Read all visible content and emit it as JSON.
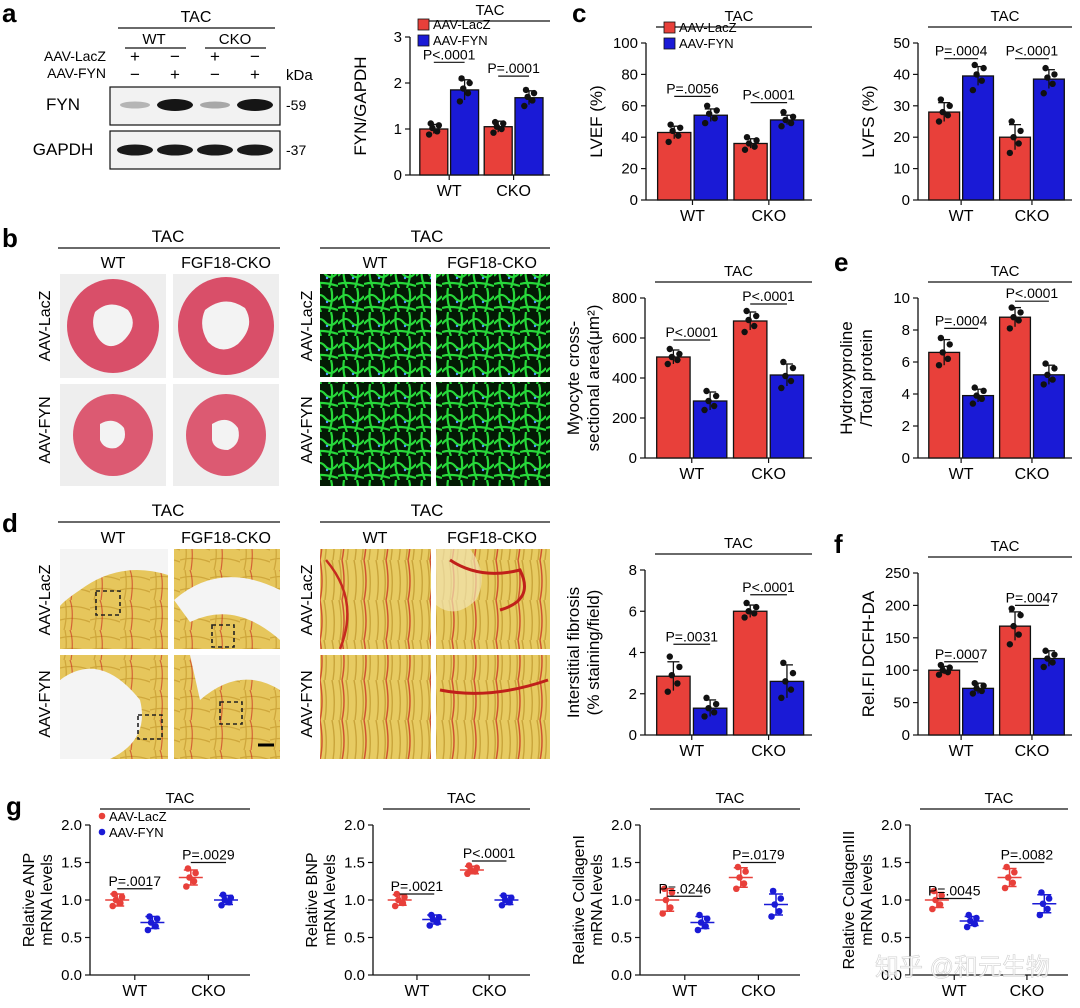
{
  "watermark": "知乎 @和元生物",
  "colors": {
    "lacz": "#e8403a",
    "fyn": "#1a1ad6",
    "stain_pink": "#d9566e",
    "wga": "#1ccf2c",
    "sirius_bg": "#e3c55a",
    "sirius_red": "#c8201c"
  },
  "legend": {
    "lacz": "AAV-LacZ",
    "fyn": "AAV-FYN"
  },
  "panel_a": {
    "letter": "a",
    "tac": "TAC",
    "genotypes": [
      "WT",
      "CKO"
    ],
    "row_labels": [
      "AAV-LacZ",
      "AAV-FYN"
    ],
    "signs_lacz": [
      "+",
      "−",
      "+",
      "−"
    ],
    "signs_fyn": [
      "−",
      "+",
      "−",
      "+"
    ],
    "kda": "kDa",
    "blots": [
      {
        "name": "FYN",
        "kda": "-59"
      },
      {
        "name": "GAPDH",
        "kda": "-37"
      }
    ]
  },
  "panel_b": {
    "letter": "b",
    "tac": "TAC",
    "col_labels": [
      "WT",
      "FGF18-CKO"
    ],
    "col_labels2": [
      "WT",
      "FGF18-CKO"
    ],
    "row_labels": [
      "AAV-LacZ",
      "AAV-FYN"
    ]
  },
  "panel_d": {
    "letter": "d",
    "tac": "TAC",
    "col_labels": [
      "WT",
      "FGF18-CKO"
    ],
    "col_labels2": [
      "WT",
      "FGF18-CKO"
    ],
    "row_labels": [
      "AAV-LacZ",
      "AAV-FYN"
    ]
  },
  "letters": {
    "c": "c",
    "e": "e",
    "f": "f",
    "g": "g"
  },
  "chart_data": [
    {
      "id": "fyn_gapdh",
      "type": "bar",
      "tac": "TAC",
      "ylabel": "FYN/GAPDH",
      "ylim": [
        0,
        3
      ],
      "yticks": [
        0,
        1,
        2,
        3
      ],
      "categories": [
        "WT",
        "CKO"
      ],
      "legend": true,
      "series": [
        {
          "name": "AAV-LacZ",
          "values": [
            1.0,
            1.05
          ],
          "err": [
            0.1,
            0.12
          ],
          "points": [
            [
              0.88,
              0.95,
              1.02,
              1.08,
              1.12
            ],
            [
              0.92,
              1.0,
              1.05,
              1.12,
              1.15
            ]
          ]
        },
        {
          "name": "AAV-FYN",
          "values": [
            1.85,
            1.68
          ],
          "err": [
            0.22,
            0.15
          ],
          "points": [
            [
              1.6,
              1.78,
              1.88,
              2.0,
              2.1
            ],
            [
              1.5,
              1.62,
              1.7,
              1.78,
              1.85
            ]
          ]
        }
      ],
      "pvalues": [
        {
          "cat": 0,
          "text": "P<.0001",
          "level": 2.45
        },
        {
          "cat": 1,
          "text": "P=.0001",
          "level": 2.15
        }
      ]
    },
    {
      "id": "lvef",
      "type": "bar",
      "tac": "TAC",
      "ylabel": "LVEF (%)",
      "ylim": [
        0,
        100
      ],
      "yticks": [
        0,
        20,
        40,
        60,
        80,
        100
      ],
      "categories": [
        "WT",
        "CKO"
      ],
      "legend": true,
      "series": [
        {
          "name": "AAV-LacZ",
          "values": [
            43,
            36
          ],
          "err": [
            4,
            3
          ],
          "points": [
            [
              37,
              41,
              44,
              46,
              48
            ],
            [
              32,
              34,
              36,
              38,
              40
            ]
          ]
        },
        {
          "name": "AAV-FYN",
          "values": [
            54,
            51
          ],
          "err": [
            4,
            3
          ],
          "points": [
            [
              49,
              52,
              55,
              57,
              60
            ],
            [
              47,
              49,
              51,
              53,
              56
            ]
          ]
        }
      ],
      "pvalues": [
        {
          "cat": 0,
          "text": "P=.0056",
          "level": 66
        },
        {
          "cat": 1,
          "text": "P<.0001",
          "level": 62
        }
      ]
    },
    {
      "id": "lvfs",
      "type": "bar",
      "tac": "TAC",
      "ylabel": "LVFS (%)",
      "ylim": [
        0,
        50
      ],
      "yticks": [
        0,
        10,
        20,
        30,
        40,
        50
      ],
      "categories": [
        "WT",
        "CKO"
      ],
      "legend": false,
      "series": [
        {
          "name": "AAV-LacZ",
          "values": [
            28,
            20
          ],
          "err": [
            3,
            4
          ],
          "points": [
            [
              25,
              27,
              28,
              30,
              32
            ],
            [
              15,
              18,
              20,
              22,
              25
            ]
          ]
        },
        {
          "name": "AAV-FYN",
          "values": [
            39.5,
            38.5
          ],
          "err": [
            3,
            3
          ],
          "points": [
            [
              35,
              38,
              40,
              42,
              43
            ],
            [
              34,
              37,
              39,
              40,
              42
            ]
          ]
        }
      ],
      "pvalues": [
        {
          "cat": 0,
          "text": "P=.0004",
          "level": 45
        },
        {
          "cat": 1,
          "text": "P<.0001",
          "level": 45
        }
      ]
    },
    {
      "id": "csa",
      "type": "bar",
      "tac": "TAC",
      "ylabel": "Myocyte cross-|sectional area(μm²)",
      "ylim": [
        0,
        800
      ],
      "yticks": [
        0,
        200,
        400,
        600,
        800
      ],
      "categories": [
        "WT",
        "CKO"
      ],
      "legend": false,
      "series": [
        {
          "name": "AAV-LacZ",
          "values": [
            505,
            685
          ],
          "err": [
            35,
            45
          ],
          "points": [
            [
              470,
              490,
              505,
              520,
              545
            ],
            [
              630,
              660,
              690,
              710,
              735
            ]
          ]
        },
        {
          "name": "AAV-FYN",
          "values": [
            285,
            415
          ],
          "err": [
            45,
            55
          ],
          "points": [
            [
              240,
              260,
              285,
              310,
              335
            ],
            [
              350,
              385,
              410,
              450,
              480
            ]
          ]
        }
      ],
      "pvalues": [
        {
          "cat": 0,
          "text": "P<.0001",
          "level": 590
        },
        {
          "cat": 1,
          "text": "P<.0001",
          "level": 770
        }
      ]
    },
    {
      "id": "hydroxyproline",
      "type": "bar",
      "tac": "TAC",
      "ylabel": "Hydroxyproline|/Total protein",
      "ylim": [
        0,
        10
      ],
      "yticks": [
        0,
        2,
        4,
        6,
        8,
        10
      ],
      "categories": [
        "WT",
        "CKO"
      ],
      "legend": false,
      "series": [
        {
          "name": "AAV-LacZ",
          "values": [
            6.6,
            8.8
          ],
          "err": [
            0.8,
            0.6
          ],
          "points": [
            [
              5.8,
              6.2,
              6.6,
              7.1,
              7.5
            ],
            [
              8.1,
              8.6,
              8.8,
              9.1,
              9.4
            ]
          ]
        },
        {
          "name": "AAV-FYN",
          "values": [
            3.9,
            5.2
          ],
          "err": [
            0.4,
            0.6
          ],
          "points": [
            [
              3.4,
              3.7,
              3.9,
              4.2,
              4.4
            ],
            [
              4.6,
              4.9,
              5.2,
              5.6,
              5.9
            ]
          ]
        }
      ],
      "pvalues": [
        {
          "cat": 0,
          "text": "P=.0004",
          "level": 8.1
        },
        {
          "cat": 1,
          "text": "P<.0001",
          "level": 9.8
        }
      ]
    },
    {
      "id": "fibrosis",
      "type": "bar",
      "tac": "TAC",
      "ylabel": "Interstitial fibrosis|(% staining/field)",
      "ylim": [
        0,
        8
      ],
      "yticks": [
        0,
        2,
        4,
        6,
        8
      ],
      "categories": [
        "WT",
        "CKO"
      ],
      "legend": false,
      "series": [
        {
          "name": "AAV-LacZ",
          "values": [
            2.85,
            6.0
          ],
          "err": [
            0.7,
            0.3
          ],
          "points": [
            [
              2.1,
              2.5,
              2.9,
              3.3,
              3.8
            ],
            [
              5.7,
              5.9,
              6.0,
              6.2,
              6.4
            ]
          ]
        },
        {
          "name": "AAV-FYN",
          "values": [
            1.3,
            2.6
          ],
          "err": [
            0.4,
            0.8
          ],
          "points": [
            [
              0.9,
              1.1,
              1.3,
              1.5,
              1.8
            ],
            [
              1.8,
              2.2,
              2.6,
              3.0,
              3.5
            ]
          ]
        }
      ],
      "pvalues": [
        {
          "cat": 0,
          "text": "P=.0031",
          "level": 4.4
        },
        {
          "cat": 1,
          "text": "P<.0001",
          "level": 6.8
        }
      ]
    },
    {
      "id": "dcfh",
      "type": "bar",
      "tac": "TAC",
      "ylabel": "Rel.FI DCFH-DA",
      "ylim": [
        0,
        250
      ],
      "yticks": [
        0,
        50,
        100,
        150,
        200,
        250
      ],
      "categories": [
        "WT",
        "CKO"
      ],
      "legend": false,
      "series": [
        {
          "name": "AAV-LacZ",
          "values": [
            100,
            168
          ],
          "err": [
            6,
            22
          ],
          "points": [
            [
              93,
              97,
              100,
              104,
              108
            ],
            [
              140,
              155,
              168,
              185,
              195
            ]
          ]
        },
        {
          "name": "AAV-FYN",
          "values": [
            72,
            118
          ],
          "err": [
            8,
            12
          ],
          "points": [
            [
              64,
              68,
              72,
              76,
              80
            ],
            [
              105,
              112,
              118,
              124,
              130
            ]
          ]
        }
      ],
      "pvalues": [
        {
          "cat": 0,
          "text": "P=.0007",
          "level": 113
        },
        {
          "cat": 1,
          "text": "P=.0047",
          "level": 200
        }
      ]
    },
    {
      "id": "anp",
      "type": "scatter",
      "tac": "TAC",
      "ylabel_top": "Relative ANP",
      "ylabel_bottom": "mRNA levels",
      "ylim": [
        0,
        2.0
      ],
      "yticks": [
        "0.0",
        "0.5",
        "1.0",
        "1.5",
        "2.0"
      ],
      "categories": [
        "WT",
        "CKO"
      ],
      "legend": true,
      "series": [
        {
          "name": "AAV-LacZ",
          "values": [
            1.0,
            1.3
          ],
          "err": [
            0.08,
            0.1
          ],
          "points": [
            [
              0.92,
              0.96,
              1.0,
              1.04,
              1.08
            ],
            [
              1.18,
              1.25,
              1.3,
              1.36,
              1.42
            ]
          ]
        },
        {
          "name": "AAV-FYN",
          "values": [
            0.7,
            1.0
          ],
          "err": [
            0.08,
            0.06
          ],
          "points": [
            [
              0.6,
              0.65,
              0.7,
              0.75,
              0.78
            ],
            [
              0.93,
              0.97,
              1.0,
              1.03,
              1.07
            ]
          ]
        }
      ],
      "pvalues": [
        {
          "cat": 0,
          "text": "P=.0017",
          "level": 1.15
        },
        {
          "cat": 1,
          "text": "P=.0029",
          "level": 1.5
        }
      ]
    },
    {
      "id": "bnp",
      "type": "scatter",
      "tac": "TAC",
      "ylabel_top": "Relative BNP",
      "ylabel_bottom": "mRNA levels",
      "ylim": [
        0,
        2.0
      ],
      "yticks": [
        "0.0",
        "0.5",
        "1.0",
        "1.5",
        "2.0"
      ],
      "categories": [
        "WT",
        "CKO"
      ],
      "legend": false,
      "series": [
        {
          "name": "AAV-LacZ",
          "values": [
            1.0,
            1.4
          ],
          "err": [
            0.07,
            0.05
          ],
          "points": [
            [
              0.92,
              0.96,
              1.0,
              1.04,
              1.08
            ],
            [
              1.35,
              1.38,
              1.4,
              1.43,
              1.46
            ]
          ]
        },
        {
          "name": "AAV-FYN",
          "values": [
            0.74,
            1.0
          ],
          "err": [
            0.06,
            0.06
          ],
          "points": [
            [
              0.66,
              0.7,
              0.74,
              0.77,
              0.8
            ],
            [
              0.93,
              0.97,
              1.0,
              1.03,
              1.06
            ]
          ]
        }
      ],
      "pvalues": [
        {
          "cat": 0,
          "text": "P=.0021",
          "level": 1.08
        },
        {
          "cat": 1,
          "text": "P<.0001",
          "level": 1.52
        }
      ]
    },
    {
      "id": "col1",
      "type": "scatter",
      "tac": "TAC",
      "ylabel_top": "Relative CollagenI",
      "ylabel_bottom": "mRNA levels",
      "ylim": [
        0,
        2.0
      ],
      "yticks": [
        "0.0",
        "0.5",
        "1.0",
        "1.5",
        "2.0"
      ],
      "categories": [
        "WT",
        "CKO"
      ],
      "legend": false,
      "series": [
        {
          "name": "AAV-LacZ",
          "values": [
            1.0,
            1.3
          ],
          "err": [
            0.15,
            0.13
          ],
          "points": [
            [
              0.82,
              0.9,
              1.0,
              1.1,
              1.15
            ],
            [
              1.15,
              1.22,
              1.3,
              1.38,
              1.44
            ]
          ]
        },
        {
          "name": "AAV-FYN",
          "values": [
            0.7,
            0.94
          ],
          "err": [
            0.08,
            0.14
          ],
          "points": [
            [
              0.6,
              0.65,
              0.7,
              0.75,
              0.8
            ],
            [
              0.78,
              0.85,
              0.94,
              1.02,
              1.12
            ]
          ]
        }
      ],
      "pvalues": [
        {
          "cat": 0,
          "text": "P=.0246",
          "level": 1.05
        },
        {
          "cat": 1,
          "text": "P=.0179",
          "level": 1.5
        }
      ]
    },
    {
      "id": "col3",
      "type": "scatter",
      "tac": "TAC",
      "ylabel_top": "Relative CollagenIII",
      "ylabel_bottom": "mRNA levels",
      "ylim": [
        0,
        2.0
      ],
      "yticks": [
        "0.0",
        "0.5",
        "1.0",
        "1.5",
        "2.0"
      ],
      "categories": [
        "WT",
        "CKO"
      ],
      "legend": false,
      "series": [
        {
          "name": "AAV-LacZ",
          "values": [
            1.0,
            1.3
          ],
          "err": [
            0.1,
            0.12
          ],
          "points": [
            [
              0.88,
              0.94,
              1.0,
              1.06,
              1.12
            ],
            [
              1.16,
              1.23,
              1.3,
              1.37,
              1.44
            ]
          ]
        },
        {
          "name": "AAV-FYN",
          "values": [
            0.72,
            0.95
          ],
          "err": [
            0.06,
            0.12
          ],
          "points": [
            [
              0.64,
              0.68,
              0.72,
              0.76,
              0.8
            ],
            [
              0.8,
              0.88,
              0.95,
              1.02,
              1.1
            ]
          ]
        }
      ],
      "pvalues": [
        {
          "cat": 0,
          "text": "P=.0045",
          "level": 1.02
        },
        {
          "cat": 1,
          "text": "P=.0082",
          "level": 1.5
        }
      ]
    }
  ]
}
